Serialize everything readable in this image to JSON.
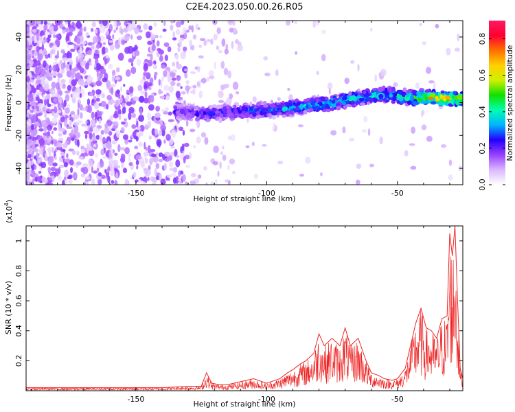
{
  "title": "C2E4.2023.050.00.26.R05",
  "chart_data": [
    {
      "type": "heatmap",
      "xlabel": "Height of straight line (km)",
      "ylabel": "Frequency (Hz)",
      "xlim": [
        -192,
        -25
      ],
      "ylim": [
        -50,
        50
      ],
      "xticks": [
        -150,
        -100,
        -50
      ],
      "yticks": [
        -40,
        -20,
        0,
        20,
        40
      ],
      "colorbar": {
        "label": "Normalized spectral amplitude",
        "range": [
          0,
          0.9
        ],
        "ticks": [
          0.0,
          0.2,
          0.4,
          0.6,
          0.8
        ],
        "colors": [
          "#ffffff",
          "#d9b8ff",
          "#9a40ff",
          "#2200ff",
          "#00b4ff",
          "#00ffb0",
          "#10e000",
          "#d0f000",
          "#ffd000",
          "#ff7000",
          "#ff0030",
          "#ff1a60"
        ]
      },
      "signal_track": {
        "x": [
          -135,
          -125,
          -115,
          -105,
          -95,
          -85,
          -75,
          -65,
          -55,
          -45,
          -35,
          -27
        ],
        "frequency": [
          -5,
          -7,
          -6,
          -5,
          -4,
          -2,
          0,
          3,
          5,
          3,
          3,
          2
        ],
        "peak_amplitude": [
          0.25,
          0.3,
          0.3,
          0.35,
          0.4,
          0.42,
          0.45,
          0.45,
          0.45,
          0.5,
          0.85,
          0.7
        ]
      }
    },
    {
      "type": "line",
      "xlabel": "Height of straight line (km)",
      "ylabel": "SNR (10 * v/v)",
      "yscale_label": "(x10",
      "yscale_exp": "4",
      "yscale_close": ")",
      "xlim": [
        -192,
        -25
      ],
      "ylim": [
        0,
        1.1
      ],
      "xticks": [
        -150,
        -100,
        -50
      ],
      "yticks": [
        0.2,
        0.4,
        0.6,
        0.8,
        1.0
      ],
      "series": [
        {
          "color": "#ee2222",
          "x": [
            -192,
            -180,
            -170,
            -160,
            -150,
            -140,
            -130,
            -125,
            -123,
            -121,
            -118,
            -115,
            -110,
            -105,
            -100,
            -95,
            -92,
            -90,
            -87,
            -85,
            -82,
            -80,
            -78,
            -75,
            -72,
            -70,
            -68,
            -65,
            -62,
            -60,
            -57,
            -55,
            -52,
            -50,
            -47,
            -45,
            -43,
            -41,
            -39,
            -37,
            -35,
            -33,
            -31,
            -30,
            -29,
            -28,
            -27,
            -26,
            -25
          ],
          "y": [
            0.02,
            0.02,
            0.02,
            0.02,
            0.02,
            0.02,
            0.03,
            0.03,
            0.12,
            0.05,
            0.04,
            0.04,
            0.06,
            0.08,
            0.05,
            0.08,
            0.12,
            0.14,
            0.18,
            0.2,
            0.25,
            0.38,
            0.3,
            0.35,
            0.3,
            0.42,
            0.3,
            0.35,
            0.2,
            0.12,
            0.1,
            0.08,
            0.07,
            0.08,
            0.15,
            0.3,
            0.45,
            0.55,
            0.42,
            0.4,
            0.35,
            0.48,
            0.5,
            1.05,
            0.9,
            1.1,
            0.6,
            0.15,
            0.08
          ]
        }
      ]
    }
  ]
}
